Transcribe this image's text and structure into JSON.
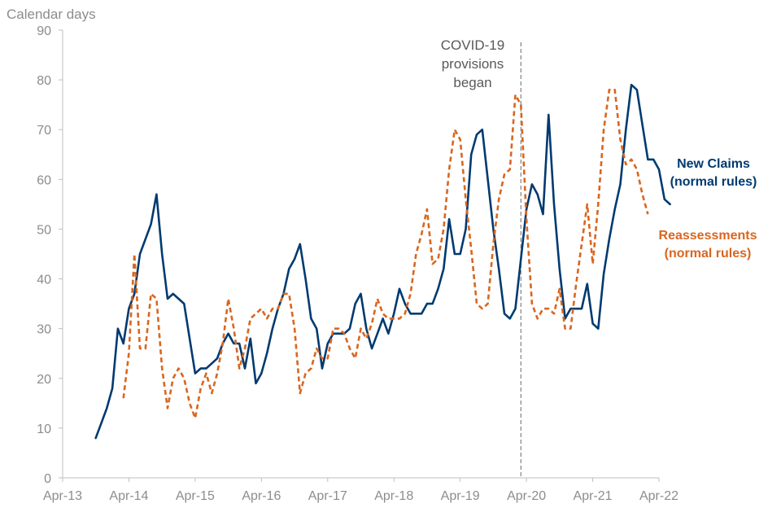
{
  "chart_data": {
    "type": "line",
    "ylabel": "Calendar days",
    "xlabel": "",
    "ylim": [
      0,
      90
    ],
    "yticks": [
      0,
      10,
      20,
      30,
      40,
      50,
      60,
      70,
      80,
      90
    ],
    "xlim": [
      "2013-04",
      "2022-04"
    ],
    "xticks": [
      "Apr-13",
      "Apr-14",
      "Apr-15",
      "Apr-16",
      "Apr-17",
      "Apr-18",
      "Apr-19",
      "Apr-20",
      "Apr-21",
      "Apr-22"
    ],
    "grid": false,
    "annotation": {
      "lines": [
        "COVID-19",
        "provisions",
        "began"
      ],
      "date": "2020-03"
    },
    "series": [
      {
        "name_lines": [
          "New Claims",
          "(normal rules)"
        ],
        "color": "#003a70",
        "style": "solid",
        "start": "2013-10",
        "values": [
          8,
          11,
          14,
          18,
          30,
          27,
          34,
          37,
          45,
          48,
          51,
          57,
          45,
          36,
          37,
          36,
          35,
          28,
          21,
          22,
          22,
          23,
          24,
          27,
          29,
          27,
          27,
          22,
          28,
          19,
          21,
          25,
          30,
          34,
          37,
          42,
          44,
          47,
          40,
          32,
          30,
          22,
          27,
          29,
          29,
          29,
          30,
          35,
          37,
          30,
          26,
          29,
          32,
          29,
          33,
          38,
          35,
          33,
          33,
          33,
          35,
          35,
          38,
          42,
          52,
          45,
          45,
          50,
          65,
          69,
          70,
          60,
          50,
          42,
          33,
          32,
          34,
          44,
          54,
          59,
          57,
          53,
          73,
          55,
          42,
          32,
          34,
          34,
          34,
          39,
          31,
          30,
          41,
          48,
          54,
          59,
          70,
          79,
          78,
          71,
          64,
          64,
          62,
          56,
          55
        ]
      },
      {
        "name_lines": [
          "Reassessments",
          "(normal rules)"
        ],
        "color": "#d9661f",
        "style": "dashed",
        "start": "2014-03",
        "values": [
          16,
          25,
          45,
          26,
          26,
          37,
          36,
          22,
          14,
          20,
          22,
          20,
          15,
          12,
          18,
          21,
          17,
          21,
          27,
          36,
          30,
          22,
          26,
          32,
          33,
          34,
          32,
          34,
          34,
          37,
          37,
          30,
          17,
          21,
          22,
          26,
          24,
          24,
          30,
          30,
          29,
          26,
          24,
          30,
          28,
          31,
          36,
          33,
          32,
          32,
          32,
          33,
          37,
          45,
          49,
          54,
          43,
          44,
          50,
          62,
          70,
          68,
          56,
          46,
          35,
          34,
          35,
          47,
          56,
          61,
          62,
          77,
          75,
          52,
          35,
          32,
          34,
          34,
          33,
          38,
          30,
          30,
          39,
          47,
          55,
          43,
          55,
          70,
          78,
          78,
          68,
          63,
          64,
          62,
          57,
          53
        ]
      }
    ]
  }
}
